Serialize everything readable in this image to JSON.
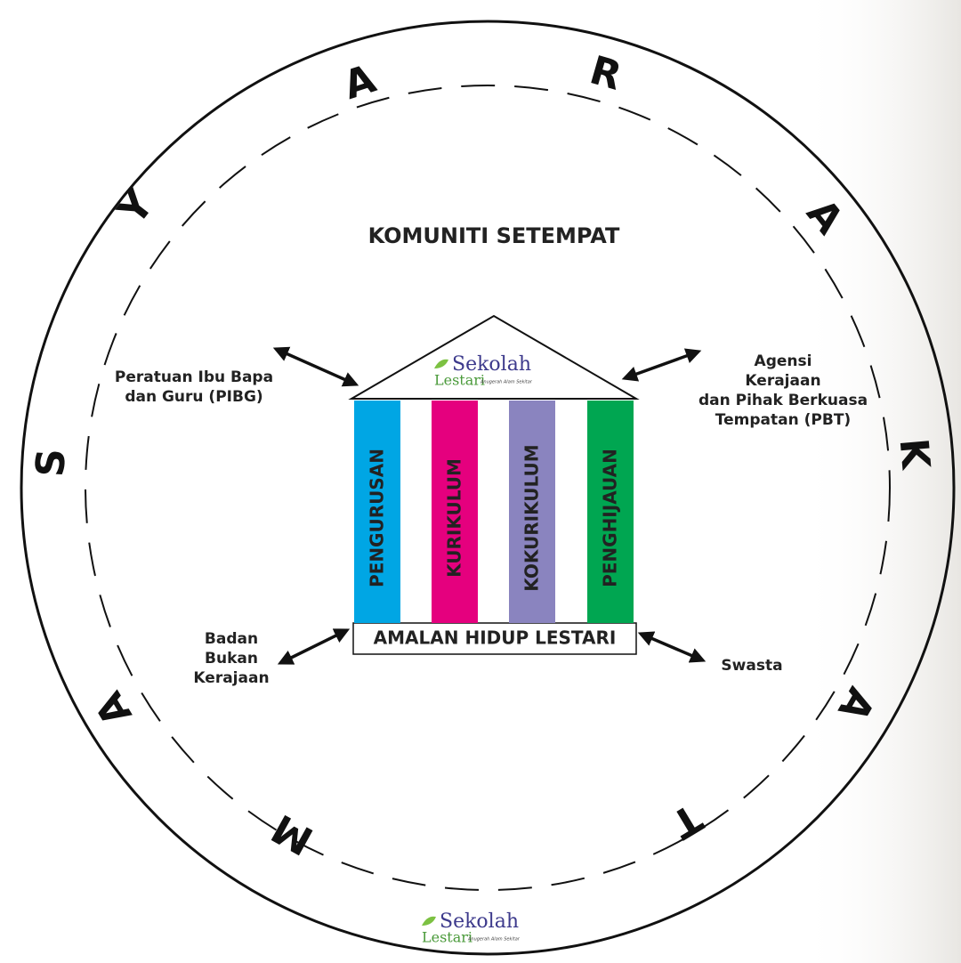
{
  "title": "KOMUNITI SETEMPAT",
  "ring_letters": [
    "M",
    "A",
    "S",
    "Y",
    "A",
    "R",
    "A",
    "K",
    "A",
    "T"
  ],
  "pillars": [
    "PENGURUSAN",
    "KURIKULUM",
    "KOKURIKULUM",
    "PENGHIJAUAN"
  ],
  "foundation": "AMALAN HIDUP LESTARI",
  "partners": [
    {
      "lines": [
        "Peratuan Ibu Bapa",
        "dan Guru (PIBG)"
      ]
    },
    {
      "lines": [
        "Agensi",
        "Kerajaan",
        "dan Pihak Berkuasa",
        "Tempatan (PBT)"
      ]
    },
    {
      "lines": [
        "Badan",
        "Bukan",
        "Kerajaan"
      ]
    },
    {
      "lines": [
        "Swasta"
      ]
    }
  ],
  "logos": [
    {
      "name": "Sekolah",
      "sub": "Lestari",
      "tagline": "Anugerah Alam Sekitar"
    },
    {
      "name": "Sekolah",
      "sub": "Lestari",
      "tagline": "Anugerah Alam Sekitar"
    }
  ]
}
